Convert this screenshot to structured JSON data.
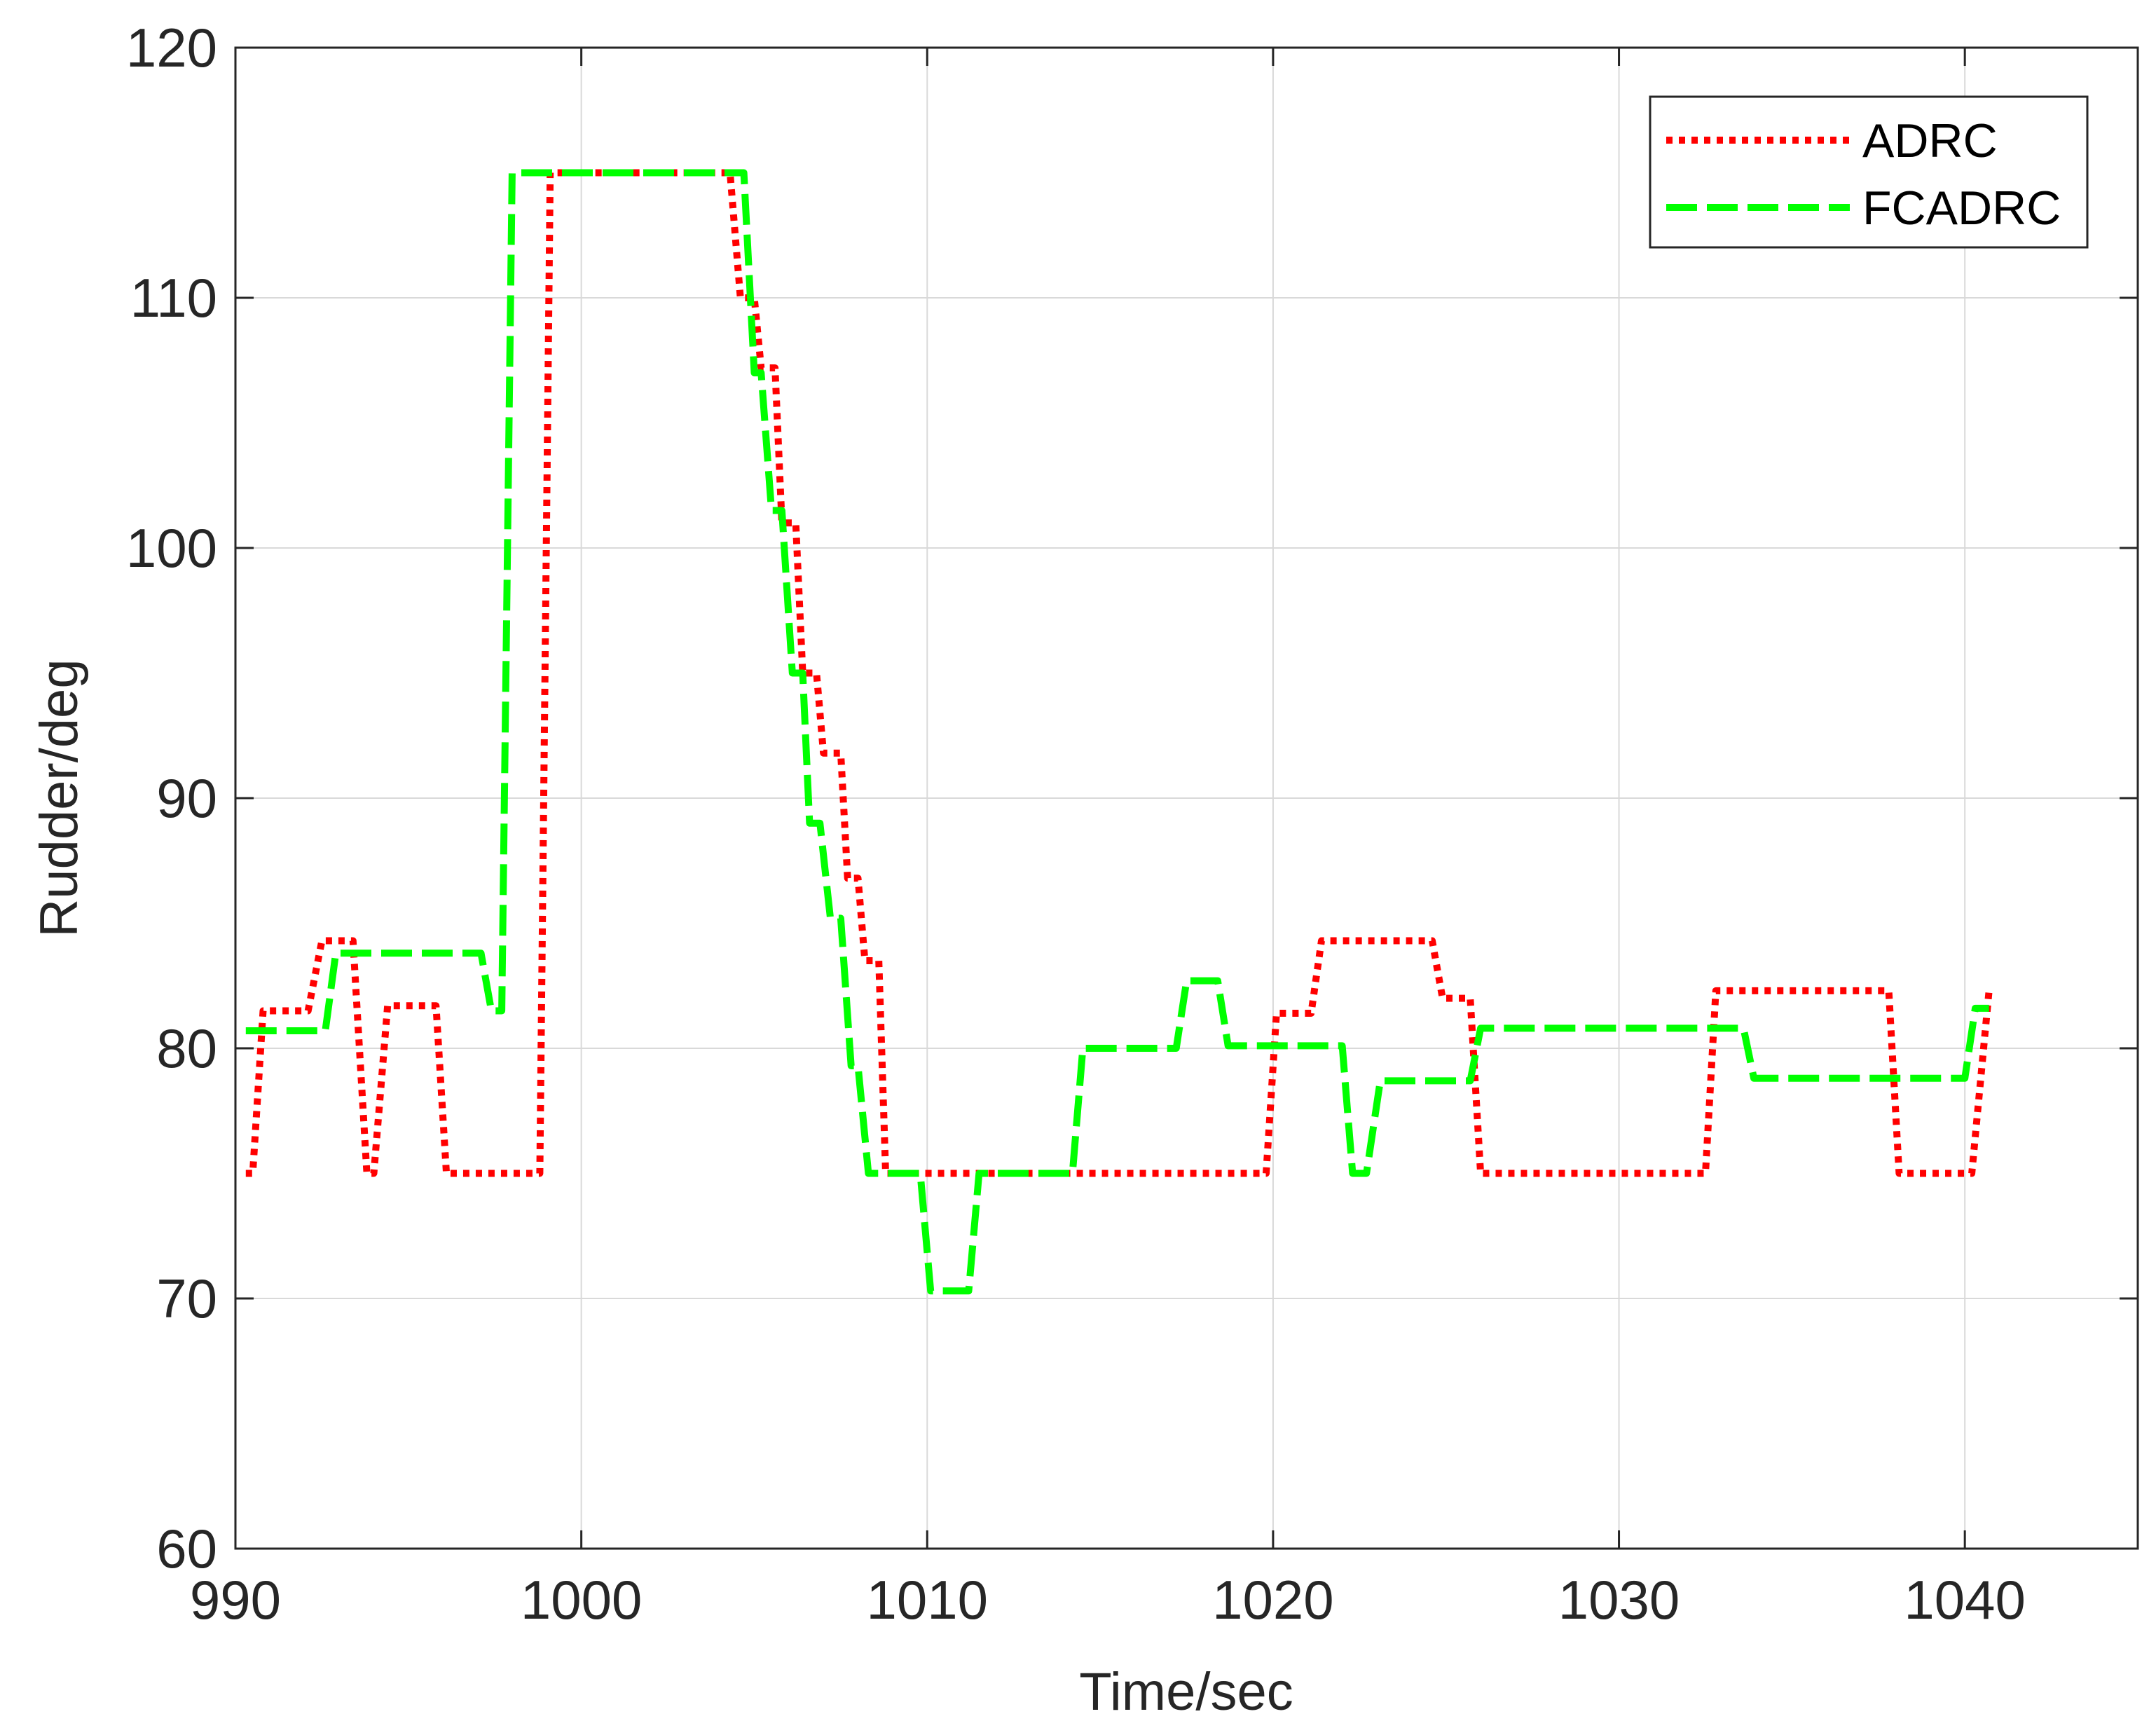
{
  "chart_data": {
    "type": "line",
    "title": "",
    "xlabel": "Time/sec",
    "ylabel": "Rudder/deg",
    "xlim": [
      990,
      1045
    ],
    "ylim": [
      60,
      120
    ],
    "xticks": [
      "990",
      "1000",
      "1010",
      "1020",
      "1030",
      "1040"
    ],
    "yticks": [
      "60",
      "70",
      "80",
      "90",
      "100",
      "110",
      "120"
    ],
    "grid": true,
    "legend_position": "top-right",
    "series": [
      {
        "name": "ADRC",
        "color": "#ff0000",
        "style": "dotted",
        "x": [
          990.3,
          990.5,
          990.8,
          992.1,
          992.5,
          993.4,
          993.8,
          994.0,
          994.4,
          995.8,
          996.1,
          998.8,
          999.1,
          1004.3,
          1004.6,
          1005.0,
          1005.2,
          1005.6,
          1005.8,
          1006.2,
          1006.4,
          1006.8,
          1007.0,
          1007.5,
          1007.7,
          1008.0,
          1008.2,
          1008.6,
          1008.8,
          1019.8,
          1020.1,
          1021.1,
          1021.4,
          1024.6,
          1024.9,
          1025.7,
          1026.0,
          1032.5,
          1032.8,
          1037.8,
          1038.1,
          1040.2,
          1040.7
        ],
        "y": [
          75,
          75,
          81.5,
          81.5,
          84.3,
          84.3,
          75,
          75,
          81.7,
          81.7,
          75,
          75,
          115,
          115,
          110,
          110,
          107.2,
          107.2,
          101,
          101,
          95,
          95,
          91.8,
          91.8,
          86.8,
          86.8,
          83.5,
          83.5,
          75,
          75,
          81.4,
          81.4,
          84.3,
          84.3,
          82,
          82,
          75,
          75,
          82.3,
          82.3,
          75,
          75,
          82.3
        ]
      },
      {
        "name": "FCADRC",
        "color": "#00ff00",
        "style": "dashed",
        "x": [
          990.3,
          992.6,
          992.9,
          997.1,
          997.4,
          997.7,
          998.0,
          1004.7,
          1005.0,
          1005.2,
          1005.5,
          1005.8,
          1006.1,
          1006.4,
          1006.6,
          1006.9,
          1007.2,
          1007.5,
          1007.8,
          1008.0,
          1008.3,
          1008.6,
          1008.9,
          1009.8,
          1010.1,
          1011.2,
          1011.5,
          1014.2,
          1014.5,
          1017.2,
          1017.5,
          1018.4,
          1018.7,
          1022.0,
          1022.3,
          1022.7,
          1023.1,
          1025.7,
          1026.0,
          1033.6,
          1033.9,
          1040.0,
          1040.3,
          1040.7
        ],
        "y": [
          80.7,
          80.7,
          83.8,
          83.8,
          81.5,
          81.5,
          115,
          115,
          107,
          107,
          101.5,
          101.5,
          95,
          95,
          89,
          89,
          85.2,
          85.2,
          79.3,
          79.3,
          75,
          75,
          75,
          75,
          70.3,
          70.3,
          75,
          75,
          80,
          80,
          82.7,
          82.7,
          80.1,
          80.1,
          75,
          75,
          78.7,
          78.7,
          80.8,
          80.8,
          78.8,
          78.8,
          81.6,
          81.6
        ]
      }
    ]
  }
}
